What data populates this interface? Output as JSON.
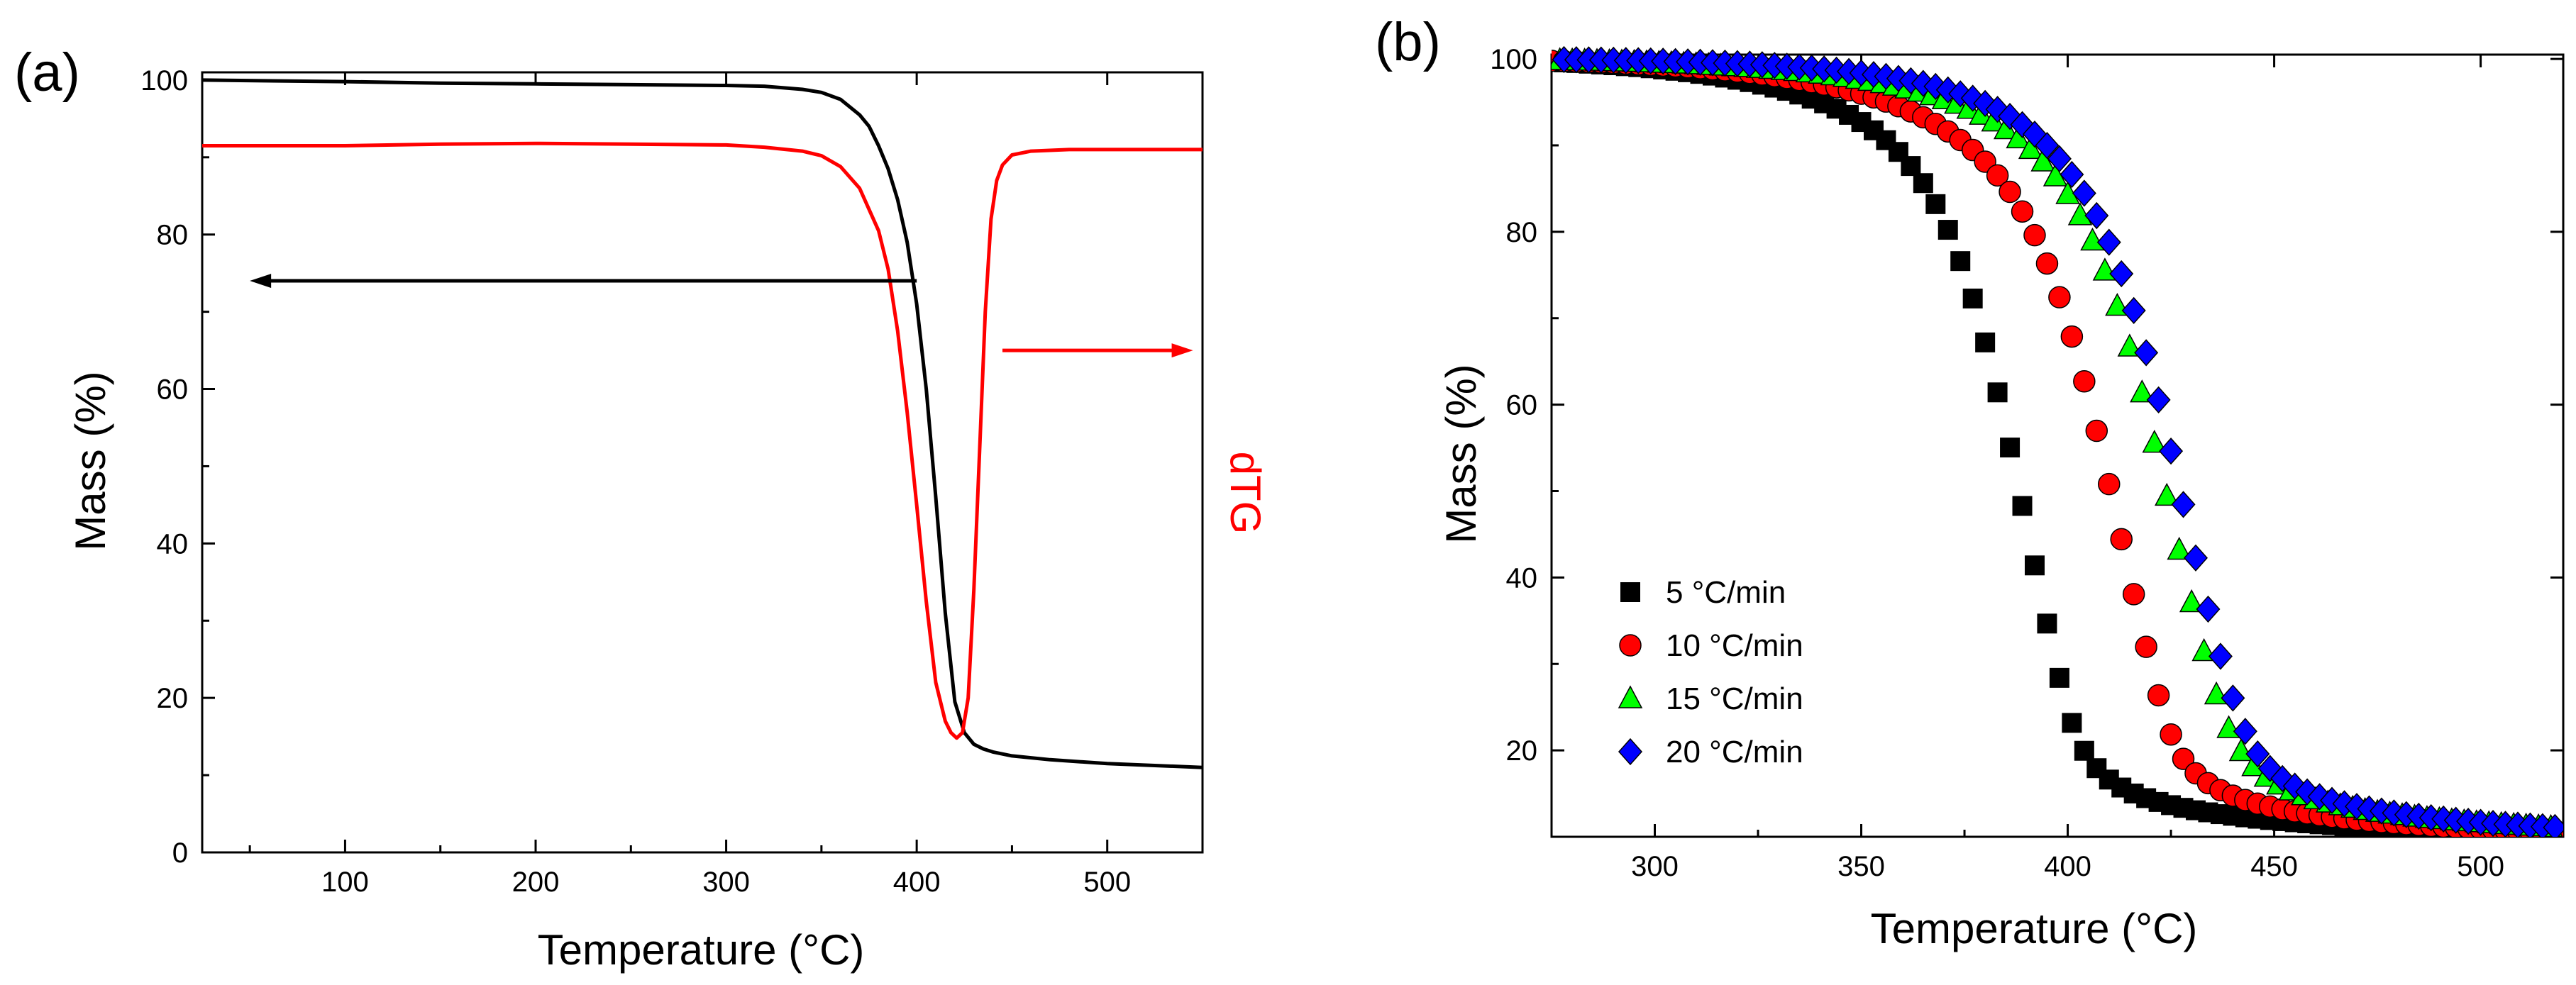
{
  "chart_data": [
    {
      "panel": "(a)",
      "type": "line",
      "xlabel": "Temperature (°C)",
      "ylabel": "Mass (%)",
      "y2label": "dTG",
      "xlim": [
        25,
        550
      ],
      "ylim": [
        0,
        101
      ],
      "xticks": [
        100,
        200,
        300,
        400,
        500
      ],
      "yticks": [
        0,
        20,
        40,
        60,
        80,
        100
      ],
      "colors": {
        "mass": "#000000",
        "dtg": "#ff0000",
        "axis": "#000000"
      },
      "series": [
        {
          "name": "Mass",
          "axis": "left",
          "color": "#000000",
          "x": [
            25,
            100,
            150,
            200,
            250,
            300,
            320,
            340,
            350,
            360,
            370,
            375,
            380,
            385,
            390,
            395,
            400,
            405,
            410,
            415,
            420,
            425,
            430,
            435,
            440,
            450,
            470,
            500,
            550
          ],
          "y": [
            100,
            99.8,
            99.6,
            99.5,
            99.4,
            99.3,
            99.2,
            98.8,
            98.4,
            97.5,
            95.5,
            94,
            91.5,
            88.5,
            84.5,
            79,
            71,
            60,
            46,
            31,
            19.5,
            15.5,
            14,
            13.4,
            13,
            12.5,
            12,
            11.5,
            11
          ]
        },
        {
          "name": "dTG",
          "axis": "right",
          "color": "#ff0000",
          "x": [
            25,
            100,
            150,
            200,
            250,
            300,
            320,
            340,
            350,
            360,
            370,
            380,
            385,
            390,
            395,
            400,
            405,
            410,
            415,
            418,
            421,
            424,
            427,
            430,
            433,
            436,
            439,
            442,
            445,
            450,
            460,
            480,
            500,
            550
          ],
          "y": [
            91.5,
            91.5,
            91.7,
            91.8,
            91.7,
            91.6,
            91.3,
            90.8,
            90.2,
            88.8,
            86,
            80.5,
            75.5,
            67.5,
            57,
            45,
            32.5,
            22,
            17,
            15.5,
            14.8,
            15.5,
            20,
            34,
            52,
            70,
            82,
            87,
            89,
            90.3,
            90.8,
            91,
            91,
            91
          ]
        }
      ],
      "annotations": [
        {
          "type": "arrow",
          "color": "#000000",
          "direction": "left",
          "x_from": 400,
          "x_to": 50,
          "y": 74
        },
        {
          "type": "arrow",
          "color": "#ff0000",
          "direction": "right",
          "x_from": 445,
          "x_to": 545,
          "y": 65
        }
      ]
    },
    {
      "panel": "(b)",
      "type": "scatter",
      "xlabel": "Temperature (°C)",
      "ylabel": "Mass (%)",
      "xlim": [
        275,
        520
      ],
      "ylim": [
        10,
        100.5
      ],
      "xticks": [
        300,
        350,
        400,
        450,
        500
      ],
      "yticks": [
        20,
        40,
        60,
        80,
        100
      ],
      "legend_position": "lower-left",
      "series": [
        {
          "name": "5 °C/min",
          "marker": "square",
          "color": "#000000",
          "x": [
            275,
            278,
            281,
            284,
            287,
            290,
            293,
            296,
            299,
            302,
            305,
            308,
            311,
            314,
            317,
            320,
            323,
            326,
            329,
            332,
            335,
            338,
            341,
            344,
            347,
            350,
            353,
            356,
            359,
            362,
            365,
            368,
            371,
            374,
            377,
            380,
            383,
            386,
            389,
            392,
            395,
            398,
            401,
            404,
            407,
            410,
            413,
            416,
            419,
            422,
            425,
            428,
            431,
            434,
            437,
            440,
            443,
            446,
            449,
            452,
            455,
            458,
            461,
            464,
            467,
            470,
            473,
            476,
            479,
            482,
            485,
            488,
            491,
            494,
            497,
            500,
            503,
            506,
            509,
            512,
            515,
            518
          ],
          "y": [
            99.67,
            99.6,
            99.53,
            99.45,
            99.36,
            99.27,
            99.16,
            99.05,
            98.92,
            98.78,
            98.63,
            98.46,
            98.27,
            98.07,
            97.84,
            97.59,
            97.32,
            97.02,
            96.68,
            96.31,
            95.88,
            95.4,
            94.86,
            94.24,
            93.53,
            92.7,
            91.74,
            90.6,
            89.24,
            87.61,
            85.63,
            83.2,
            80.23,
            76.61,
            72.28,
            67.2,
            61.42,
            55.04,
            48.28,
            41.4,
            34.67,
            28.39,
            23.18,
            19.95,
            17.94,
            16.62,
            15.7,
            15.01,
            14.47,
            14.03,
            13.66,
            13.35,
            13.07,
            12.83,
            12.62,
            12.43,
            12.25,
            12.09,
            11.94,
            11.81,
            11.68,
            11.56,
            11.45,
            11.35,
            11.25,
            11.16,
            11.08,
            11,
            10.92,
            10.85,
            10.78,
            10.72,
            10.66,
            10.6,
            10.54,
            10.49,
            10.44,
            10.39,
            10.35,
            10.3,
            10.26,
            10.22
          ]
        },
        {
          "name": "10 °C/min",
          "marker": "circle",
          "color": "#ff0000",
          "x": [
            275,
            278,
            281,
            284,
            287,
            290,
            293,
            296,
            299,
            302,
            305,
            308,
            311,
            314,
            317,
            320,
            323,
            326,
            329,
            332,
            335,
            338,
            341,
            344,
            347,
            350,
            353,
            356,
            359,
            362,
            365,
            368,
            371,
            374,
            377,
            380,
            383,
            386,
            389,
            392,
            395,
            398,
            401,
            404,
            407,
            410,
            413,
            416,
            419,
            422,
            425,
            428,
            431,
            434,
            437,
            440,
            443,
            446,
            449,
            452,
            455,
            458,
            461,
            464,
            467,
            470,
            473,
            476,
            479,
            482,
            485,
            488,
            491,
            494,
            497,
            500,
            503,
            506,
            509,
            512,
            515,
            518
          ],
          "y": [
            99.78,
            99.74,
            99.69,
            99.64,
            99.59,
            99.53,
            99.46,
            99.39,
            99.32,
            99.23,
            99.14,
            99.04,
            98.93,
            98.81,
            98.68,
            98.54,
            98.38,
            98.2,
            98.01,
            97.8,
            97.57,
            97.31,
            97.03,
            96.72,
            96.37,
            95.98,
            95.55,
            95.07,
            94.53,
            93.93,
            93.25,
            92.48,
            91.61,
            90.61,
            89.46,
            88.11,
            86.52,
            84.62,
            82.35,
            79.61,
            76.33,
            72.43,
            67.88,
            62.7,
            56.97,
            50.81,
            44.43,
            38.07,
            31.98,
            26.37,
            21.84,
            19.02,
            17.34,
            16.21,
            15.39,
            14.76,
            14.26,
            13.84,
            13.5,
            13.2,
            12.94,
            12.71,
            12.5,
            12.31,
            12.14,
            11.98,
            11.84,
            11.71,
            11.59,
            11.47,
            11.37,
            11.27,
            11.18,
            11.09,
            11.01,
            10.93,
            10.86,
            10.79,
            10.73,
            10.67,
            10.61,
            10.55
          ]
        },
        {
          "name": "15 °C/min",
          "marker": "triangle",
          "color": "#00ff00",
          "x": [
            277,
            280,
            283,
            286,
            289,
            292,
            295,
            298,
            301,
            304,
            307,
            310,
            313,
            316,
            319,
            322,
            325,
            328,
            331,
            334,
            337,
            340,
            343,
            346,
            349,
            352,
            355,
            358,
            361,
            364,
            367,
            370,
            373,
            376,
            379,
            382,
            385,
            388,
            391,
            394,
            397,
            400,
            403,
            406,
            409,
            412,
            415,
            418,
            421,
            424,
            427,
            430,
            433,
            436,
            439,
            442,
            445,
            448,
            451,
            454,
            457,
            460,
            463,
            466,
            469,
            472,
            475,
            478,
            481,
            484,
            487,
            490,
            493,
            496,
            499,
            502,
            505,
            508,
            511,
            514,
            517
          ],
          "y": [
            99.85,
            99.82,
            99.79,
            99.76,
            99.72,
            99.68,
            99.64,
            99.59,
            99.54,
            99.49,
            99.43,
            99.36,
            99.29,
            99.21,
            99.13,
            99.04,
            98.93,
            98.82,
            98.7,
            98.57,
            98.42,
            98.26,
            98.08,
            97.89,
            97.67,
            97.43,
            97.17,
            96.88,
            96.55,
            96.18,
            95.77,
            95.31,
            94.79,
            94.2,
            93.52,
            92.74,
            91.84,
            90.79,
            89.56,
            88.11,
            86.39,
            84.34,
            81.89,
            78.96,
            75.49,
            71.41,
            66.7,
            61.39,
            55.57,
            49.43,
            43.19,
            37.12,
            31.46,
            26.45,
            22.55,
            19.89,
            18.14,
            16.92,
            16.02,
            15.33,
            14.78,
            14.32,
            13.94,
            13.62,
            13.33,
            13.08,
            12.86,
            12.66,
            12.48,
            12.31,
            12.16,
            12.02,
            11.89,
            11.77,
            11.66,
            11.55,
            11.45,
            11.36,
            11.27,
            11.19,
            11.11
          ]
        },
        {
          "name": "20 °C/min",
          "marker": "diamond",
          "color": "#0000ff",
          "x": [
            278,
            281,
            284,
            287,
            290,
            293,
            296,
            299,
            302,
            305,
            308,
            311,
            314,
            317,
            320,
            323,
            326,
            329,
            332,
            335,
            338,
            341,
            344,
            347,
            350,
            353,
            356,
            359,
            362,
            365,
            368,
            371,
            374,
            377,
            380,
            383,
            386,
            389,
            392,
            395,
            398,
            401,
            404,
            407,
            410,
            413,
            416,
            419,
            422,
            425,
            428,
            431,
            434,
            437,
            440,
            443,
            446,
            449,
            452,
            455,
            458,
            461,
            464,
            467,
            470,
            473,
            476,
            479,
            482,
            485,
            488,
            491,
            494,
            497,
            500,
            503,
            506,
            509,
            512,
            515,
            518
          ],
          "y": [
            99.93,
            99.91,
            99.89,
            99.87,
            99.85,
            99.82,
            99.8,
            99.77,
            99.74,
            99.7,
            99.66,
            99.62,
            99.57,
            99.52,
            99.46,
            99.4,
            99.33,
            99.25,
            99.16,
            99.06,
            98.96,
            98.84,
            98.7,
            98.55,
            98.38,
            98.19,
            97.98,
            97.74,
            97.47,
            97.17,
            96.82,
            96.42,
            95.97,
            95.45,
            94.85,
            94.16,
            93.35,
            92.4,
            91.3,
            89.99,
            88.45,
            86.63,
            84.46,
            81.87,
            78.79,
            75.15,
            70.89,
            66.01,
            60.55,
            54.62,
            48.45,
            42.27,
            36.34,
            30.88,
            26.05,
            22.2,
            19.59,
            17.91,
            16.74,
            15.87,
            15.2,
            14.65,
            14.21,
            13.83,
            13.51,
            13.23,
            12.98,
            12.76,
            12.56,
            12.38,
            12.21,
            12.06,
            11.92,
            11.79,
            11.67,
            11.55,
            11.45,
            11.35,
            11.25,
            11.17,
            11.08
          ]
        }
      ]
    }
  ],
  "panel_labels": [
    "(a)",
    "(b)"
  ]
}
